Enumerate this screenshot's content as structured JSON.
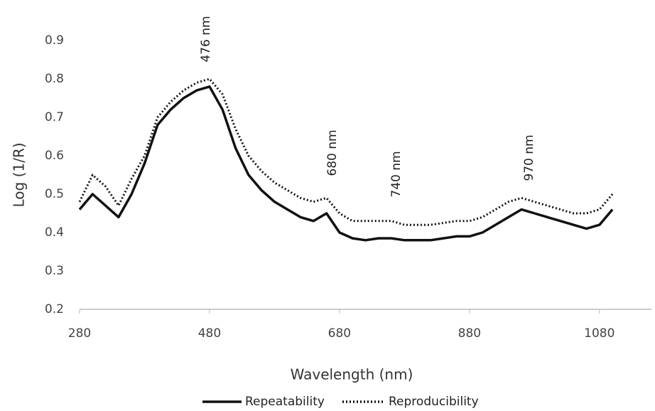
{
  "chart_data": {
    "type": "line",
    "x_label": "Wavelength (nm)",
    "y_label": "Log (1/R)",
    "x": [
      280,
      300,
      320,
      340,
      360,
      380,
      400,
      420,
      440,
      460,
      480,
      500,
      520,
      540,
      560,
      580,
      600,
      620,
      640,
      660,
      680,
      700,
      720,
      740,
      760,
      780,
      800,
      820,
      840,
      860,
      880,
      900,
      920,
      940,
      960,
      980,
      1000,
      1020,
      1040,
      1060,
      1080,
      1100
    ],
    "series": [
      {
        "name": "Repeatability",
        "color": "#111111",
        "style": "solid",
        "values": [
          0.46,
          0.5,
          0.47,
          0.44,
          0.5,
          0.58,
          0.68,
          0.72,
          0.75,
          0.77,
          0.78,
          0.72,
          0.62,
          0.55,
          0.51,
          0.48,
          0.46,
          0.44,
          0.43,
          0.45,
          0.4,
          0.385,
          0.38,
          0.385,
          0.385,
          0.38,
          0.38,
          0.38,
          0.385,
          0.39,
          0.39,
          0.4,
          0.42,
          0.44,
          0.46,
          0.45,
          0.44,
          0.43,
          0.42,
          0.41,
          0.42,
          0.46
        ]
      },
      {
        "name": "Reproducibility",
        "color": "#111111",
        "style": "dotted",
        "values": [
          0.48,
          0.55,
          0.52,
          0.47,
          0.54,
          0.6,
          0.7,
          0.74,
          0.77,
          0.79,
          0.8,
          0.76,
          0.67,
          0.6,
          0.56,
          0.53,
          0.51,
          0.49,
          0.48,
          0.49,
          0.45,
          0.43,
          0.43,
          0.43,
          0.43,
          0.42,
          0.42,
          0.42,
          0.425,
          0.43,
          0.43,
          0.44,
          0.46,
          0.48,
          0.49,
          0.48,
          0.47,
          0.46,
          0.45,
          0.45,
          0.46,
          0.5
        ]
      }
    ],
    "annotations": [
      "476 nm",
      "680 nm",
      "740 nm",
      "970 nm"
    ],
    "xlim": [
      280,
      1160
    ],
    "xticks": [
      280,
      480,
      680,
      880,
      1080
    ],
    "ylim": [
      0.2,
      0.9
    ],
    "yticks": [
      0.2,
      0.3,
      0.4,
      0.5,
      0.6,
      0.7,
      0.8,
      0.9
    ],
    "grid": false,
    "legend": "bottom"
  }
}
